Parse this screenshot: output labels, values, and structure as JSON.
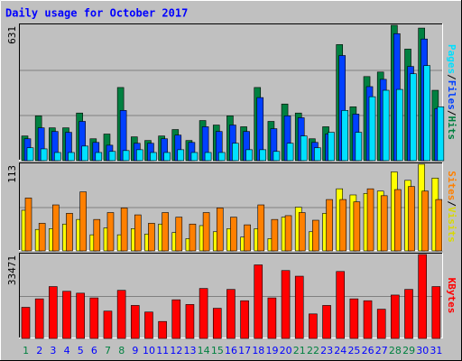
{
  "chart_data": {
    "type": "bar",
    "title": "Daily usage for October 2017",
    "categories": [
      "1",
      "2",
      "3",
      "4",
      "5",
      "6",
      "7",
      "8",
      "9",
      "10",
      "11",
      "12",
      "13",
      "14",
      "15",
      "16",
      "17",
      "18",
      "19",
      "20",
      "21",
      "22",
      "23",
      "24",
      "25",
      "26",
      "27",
      "28",
      "29",
      "30",
      "31"
    ],
    "category_colors": [
      "#008040",
      "#0000ff",
      "#0000ff",
      "#0000ff",
      "#0000ff",
      "#0000ff",
      "#008040",
      "#008040",
      "#0000ff",
      "#0000ff",
      "#0000ff",
      "#0000ff",
      "#0000ff",
      "#008040",
      "#008040",
      "#0000ff",
      "#0000ff",
      "#0000ff",
      "#0000ff",
      "#0000ff",
      "#008040",
      "#008040",
      "#0000ff",
      "#0000ff",
      "#0000ff",
      "#0000ff",
      "#0000ff",
      "#008040",
      "#008040",
      "#0000ff",
      "#0000ff"
    ],
    "separator": "/",
    "panels": [
      {
        "ylim": [
          0,
          631
        ],
        "yticks": [
          631
        ],
        "grid_divisions": 3,
        "series": [
          {
            "name": "Hits",
            "color": "#008040",
            "values": [
              115,
              209,
              153,
              153,
              222,
              102,
              124,
              341,
              111,
              94,
              115,
              145,
              94,
              187,
              166,
              209,
              158,
              341,
              183,
              264,
              222,
              102,
              158,
              541,
              251,
              392,
              413,
              631,
              520,
              618,
              328
            ]
          },
          {
            "name": "Files",
            "color": "#0040ff",
            "values": [
              102,
              153,
              136,
              132,
              183,
              85,
              72,
              234,
              81,
              81,
              102,
              119,
              85,
              158,
              136,
              166,
              136,
              294,
              149,
              209,
              200,
              85,
              124,
              490,
              217,
              345,
              379,
              592,
              439,
              567,
              243
            ]
          },
          {
            "name": "Pages",
            "color": "#00e0ff",
            "values": [
              60,
              55,
              38,
              38,
              68,
              38,
              43,
              47,
              51,
              38,
              38,
              51,
              38,
              38,
              38,
              81,
              51,
              51,
              43,
              81,
              115,
              60,
              132,
              234,
              132,
              298,
              328,
              332,
              405,
              443,
              251
            ]
          }
        ]
      },
      {
        "ylim": [
          0,
          113
        ],
        "yticks": [
          113
        ],
        "grid_divisions": 2,
        "series": [
          {
            "name": "Visits",
            "color": "#ffff00",
            "values": [
              53,
              28,
              29,
              35,
              41,
              21,
              30,
              21,
              29,
              22,
              35,
              24,
              16,
              33,
              25,
              29,
              18,
              29,
              16,
              44,
              57,
              25,
              49,
              81,
              73,
              75,
              78,
              103,
              92,
              113,
              95
            ]
          },
          {
            "name": "Sites",
            "color": "#ff8000",
            "values": [
              69,
              36,
              60,
              49,
              77,
              41,
              50,
              56,
              47,
              36,
              50,
              44,
              35,
              50,
              56,
              44,
              34,
              60,
              41,
              46,
              50,
              40,
              67,
              67,
              64,
              81,
              72,
              80,
              84,
              78,
              67
            ]
          }
        ]
      },
      {
        "ylim": [
          0,
          33471
        ],
        "yticks": [
          33471
        ],
        "grid_divisions": 2,
        "series": [
          {
            "name": "KBytes",
            "color": "#ff0000",
            "values": [
              12410,
              15790,
              20680,
              18800,
              18050,
              16170,
              10900,
              19180,
              13160,
              10530,
              6770,
              15420,
              13540,
              19930,
              12030,
              19550,
              15040,
              29330,
              16170,
              27080,
              24820,
              9780,
              13160,
              26700,
              15790,
              15040,
              11660,
              17300,
              19550,
              33471,
              20680
            ]
          }
        ]
      }
    ]
  }
}
